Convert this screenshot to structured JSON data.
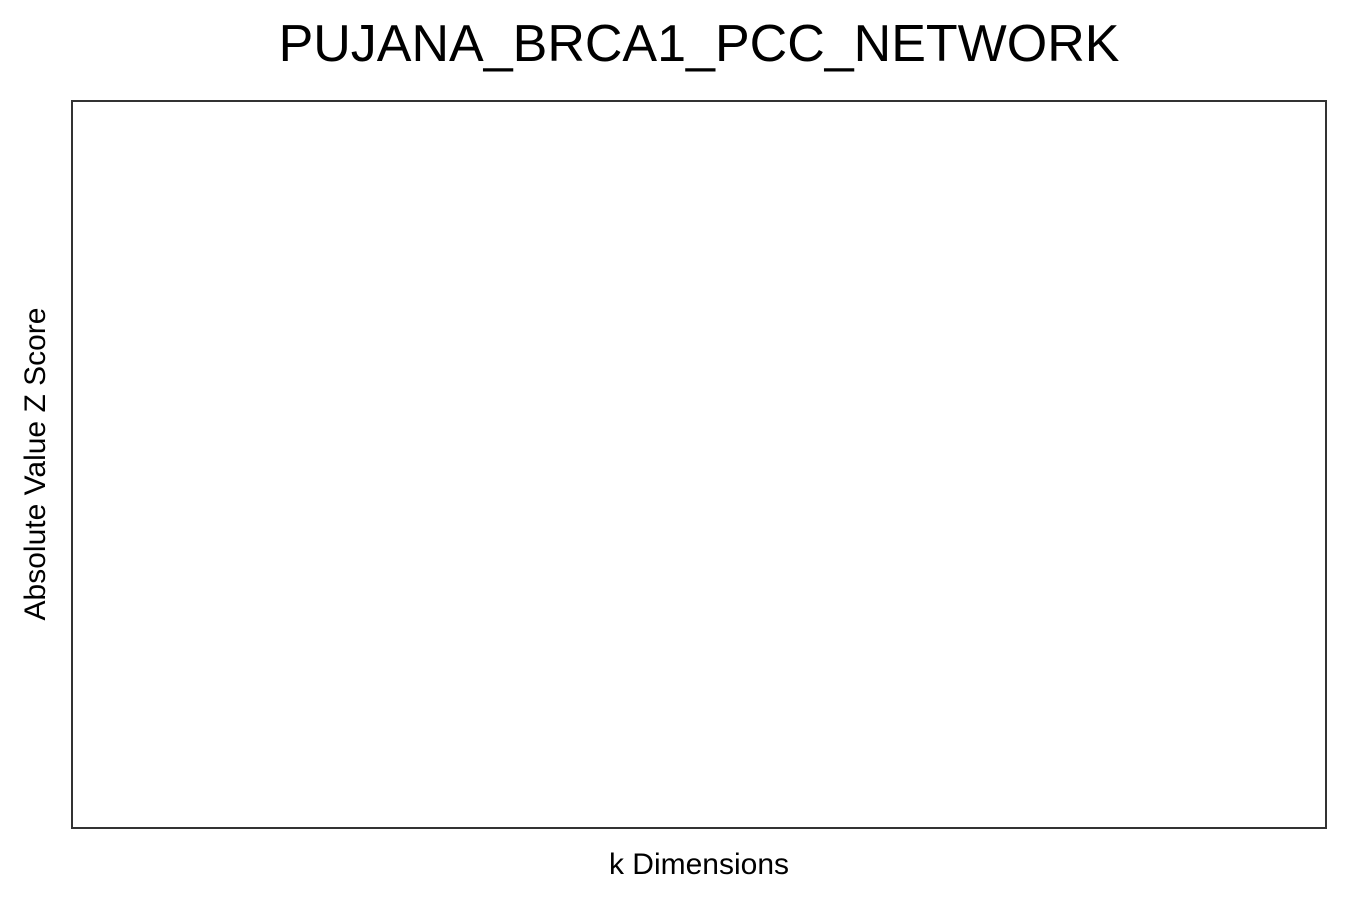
{
  "chart_data": {
    "type": "line",
    "title": "PUJANA_BRCA1_PCC_NETWORK",
    "xlabel": "k Dimensions",
    "ylabel": "Absolute Value Z Score",
    "series": [],
    "grid": false,
    "legend": "none"
  },
  "colors": {
    "frame": "#333333",
    "background": "#ffffff",
    "text": "#000000"
  }
}
